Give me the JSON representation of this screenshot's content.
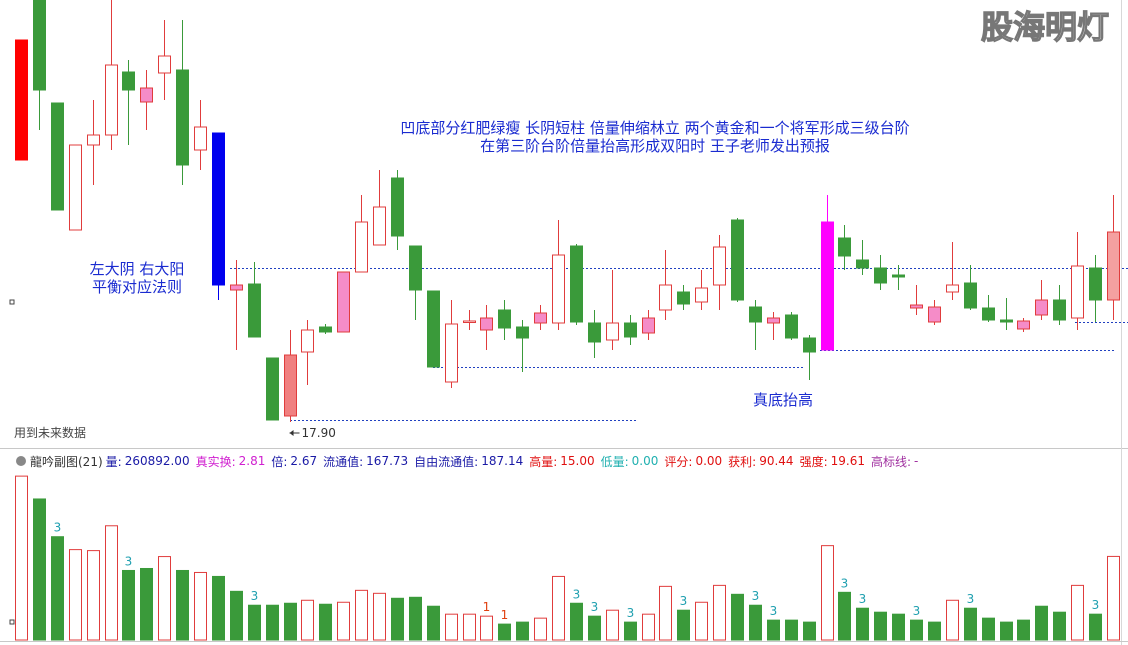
{
  "chart_data": {
    "type": "candlestick",
    "watermark": "股海明灯",
    "annotations": [
      "凹底部分红肥绿瘦 长阴短柱 倍量伸缩林立 两个黄金和一个将军形成三级台阶",
      "在第三阶台阶倍量抬高形成双阳时 王子老师发出预报",
      "左大阴 右大阳",
      "平衡对应法则",
      "真底抬高"
    ],
    "future_note": "用到未来数据",
    "low_marker": {
      "value": 17.9,
      "label": "17.90"
    },
    "ylim": [
      17.34,
      26.34
    ],
    "candles": {
      "ohlc": [
        [
          23.14,
          25.54,
          23.14,
          25.54
        ],
        [
          26.34,
          26.34,
          23.74,
          24.54
        ],
        [
          24.28,
          24.28,
          22.14,
          22.14
        ],
        [
          21.74,
          23.44,
          21.74,
          23.44
        ],
        [
          23.44,
          24.34,
          22.64,
          23.64
        ],
        [
          23.64,
          26.34,
          23.34,
          25.04
        ],
        [
          24.9,
          25.14,
          23.44,
          24.54
        ],
        [
          24.58,
          24.94,
          23.74,
          24.3
        ],
        [
          24.88,
          25.94,
          24.34,
          25.22
        ],
        [
          24.94,
          25.94,
          22.64,
          23.04
        ],
        [
          23.34,
          24.34,
          22.94,
          23.8
        ],
        [
          23.68,
          23.68,
          20.34,
          20.64
        ],
        [
          20.64,
          21.14,
          19.34,
          20.54
        ],
        [
          20.66,
          21.1,
          19.6,
          19.6
        ],
        [
          19.18,
          19.18,
          17.94,
          17.94
        ],
        [
          19.24,
          19.74,
          17.9,
          18.02
        ],
        [
          19.3,
          19.94,
          18.64,
          19.74
        ],
        [
          19.8,
          19.86,
          19.66,
          19.7
        ],
        [
          19.7,
          20.9,
          19.7,
          20.9
        ],
        [
          20.9,
          22.44,
          20.9,
          21.9
        ],
        [
          21.44,
          22.94,
          21.44,
          22.2
        ],
        [
          22.78,
          22.94,
          21.34,
          21.62
        ],
        [
          21.42,
          21.42,
          19.94,
          20.54
        ],
        [
          20.52,
          20.52,
          19.0,
          19.0
        ],
        [
          18.7,
          20.34,
          18.58,
          19.86
        ],
        [
          19.9,
          20.14,
          19.74,
          19.92
        ],
        [
          19.74,
          20.24,
          19.34,
          19.98
        ],
        [
          20.14,
          20.34,
          19.54,
          19.78
        ],
        [
          19.8,
          19.94,
          18.9,
          19.58
        ],
        [
          19.88,
          20.24,
          19.74,
          20.08
        ],
        [
          19.88,
          21.94,
          19.74,
          21.24
        ],
        [
          21.42,
          21.46,
          19.84,
          19.9
        ],
        [
          19.88,
          20.14,
          19.18,
          19.5
        ],
        [
          19.54,
          20.94,
          19.34,
          19.88
        ],
        [
          19.88,
          20.04,
          19.44,
          19.6
        ],
        [
          19.68,
          20.14,
          19.54,
          19.98
        ],
        [
          20.14,
          21.34,
          19.94,
          20.64
        ],
        [
          20.5,
          20.64,
          20.14,
          20.26
        ],
        [
          20.3,
          20.94,
          20.14,
          20.58
        ],
        [
          20.64,
          21.64,
          20.14,
          21.4
        ],
        [
          21.94,
          21.98,
          20.3,
          20.34
        ],
        [
          20.2,
          20.34,
          19.34,
          19.9
        ],
        [
          19.98,
          20.1,
          19.54,
          19.88
        ],
        [
          20.04,
          20.1,
          19.54,
          19.58
        ],
        [
          19.58,
          19.64,
          18.74,
          19.3
        ],
        [
          19.34,
          22.44,
          19.34,
          21.9
        ],
        [
          21.58,
          21.84,
          20.94,
          21.22
        ],
        [
          21.14,
          21.54,
          20.84,
          20.98
        ],
        [
          20.98,
          21.24,
          20.54,
          20.68
        ],
        [
          20.84,
          21.04,
          20.54,
          20.8
        ],
        [
          20.24,
          20.64,
          20.04,
          20.18
        ],
        [
          20.2,
          20.34,
          19.84,
          19.9
        ],
        [
          20.5,
          21.5,
          20.34,
          20.64
        ],
        [
          20.68,
          21.04,
          20.14,
          20.18
        ],
        [
          20.18,
          20.44,
          19.9,
          19.94
        ],
        [
          19.94,
          20.38,
          19.74,
          19.9
        ],
        [
          19.92,
          19.98,
          19.7,
          19.76
        ],
        [
          20.34,
          20.74,
          19.94,
          20.04
        ],
        [
          20.34,
          20.64,
          19.84,
          19.94
        ],
        [
          19.98,
          21.7,
          19.74,
          21.02
        ],
        [
          20.98,
          21.24,
          19.9,
          20.34
        ],
        [
          20.34,
          22.44,
          19.94,
          21.7
        ]
      ],
      "fill": [
        "#ff0000",
        "#3a9a3a",
        "#3a9a3a",
        "none",
        "none",
        "none",
        "#3a9a3a",
        "#f58cc8",
        "none",
        "#3a9a3a",
        "none",
        "#0000ee",
        "#f58cc8",
        "#3a9a3a",
        "#3a9a3a",
        "#f08080",
        "none",
        "#3a9a3a",
        "#f58cc8",
        "none",
        "none",
        "#3a9a3a",
        "#3a9a3a",
        "#3a9a3a",
        "none",
        "none",
        "#f58cc8",
        "#3a9a3a",
        "#3a9a3a",
        "#f58cc8",
        "none",
        "#3a9a3a",
        "#3a9a3a",
        "none",
        "#3a9a3a",
        "#f58cc8",
        "none",
        "#3a9a3a",
        "none",
        "none",
        "#3a9a3a",
        "#3a9a3a",
        "#f58cc8",
        "#3a9a3a",
        "#3a9a3a",
        "#ff00ff",
        "#3a9a3a",
        "#3a9a3a",
        "#3a9a3a",
        "#3a9a3a",
        "#f58cc8",
        "#f58cc8",
        "none",
        "#3a9a3a",
        "#3a9a3a",
        "#3a9a3a",
        "#f58cc8",
        "#f58cc8",
        "#3a9a3a",
        "none",
        "#3a9a3a",
        "#f4a0a0"
      ]
    },
    "indicator": {
      "title": "龍吟副图(21)",
      "items": [
        {
          "name": "量:",
          "value": 260892,
          "label": "260892.00",
          "color": "#1a1aa6"
        },
        {
          "name": "真实换:",
          "value": 2.81,
          "color": "#d020d0"
        },
        {
          "name": "倍:",
          "value": 2.67,
          "color": "#1a1aa6"
        },
        {
          "name": "流通值:",
          "value": 167.73,
          "color": "#1a1aa6"
        },
        {
          "name": "自由流通值:",
          "value": 187.14,
          "color": "#1a1aa6"
        },
        {
          "name": "高量:",
          "value": 15,
          "label": "15.00",
          "color": "#e01010"
        },
        {
          "name": "低量:",
          "value": 0,
          "label": "0.00",
          "color": "#20b0b0"
        },
        {
          "name": "评分:",
          "value": 0,
          "label": "0.00",
          "color": "#e01010"
        },
        {
          "name": "获利:",
          "value": 90.44,
          "color": "#e01010"
        },
        {
          "name": "强度:",
          "value": 19.61,
          "color": "#e01010"
        },
        {
          "name": "高标线:",
          "value": "-",
          "color": "#a030a0"
        }
      ]
    },
    "volume": {
      "ylim": [
        0,
        515000
      ],
      "values": [
        511500,
        440200,
        322400,
        282100,
        279000,
        356500,
        217000,
        223200,
        260400,
        217000,
        210800,
        198400,
        151900,
        108500,
        108500,
        114700,
        124000,
        111600,
        117800,
        155000,
        145700,
        130200,
        133300,
        105400,
        80600,
        80600,
        74400,
        49600,
        55800,
        68200,
        198400,
        114700,
        74400,
        93000,
        55800,
        80600,
        167400,
        93000,
        117800,
        170500,
        142600,
        108500,
        62000,
        62000,
        55800,
        294500,
        148800,
        99200,
        86800,
        80600,
        62000,
        55800,
        124000,
        99200,
        68200,
        55800,
        62000,
        105400,
        86800,
        170500,
        80600,
        260892
      ],
      "signals": [
        null,
        null,
        "3",
        null,
        null,
        null,
        "3",
        null,
        null,
        null,
        null,
        null,
        null,
        "3",
        null,
        null,
        null,
        null,
        null,
        null,
        null,
        null,
        null,
        null,
        null,
        null,
        "1",
        "1",
        null,
        null,
        null,
        "3",
        "3",
        null,
        "3",
        null,
        null,
        "3",
        null,
        null,
        null,
        "3",
        "3",
        null,
        null,
        null,
        "3",
        "3",
        null,
        null,
        "3",
        null,
        null,
        "3",
        null,
        null,
        null,
        null,
        null,
        null,
        "3",
        null
      ]
    }
  }
}
